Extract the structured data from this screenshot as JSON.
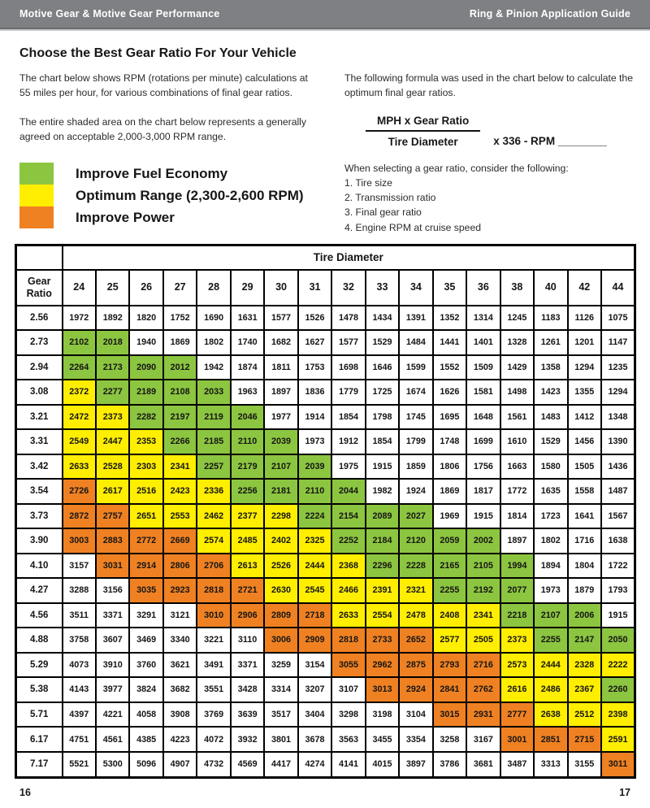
{
  "topbar": {
    "left": "Motive Gear & Motive Gear Performance",
    "right": "Ring & Pinion Application Guide"
  },
  "heading": "Choose the Best Gear Ratio For Your Vehicle",
  "intro": {
    "para1": "The chart below shows RPM (rotations per minute) calculations at 55 miles per hour, for various combinations of final gear ratios.",
    "para2": "The entire shaded area on the chart below represents a generally agreed on acceptable 2,000-3,000 RPM range."
  },
  "legend": {
    "items": [
      {
        "label": "Improve Fuel Economy",
        "color": "#8cc540"
      },
      {
        "label": "Optimum Range (2,300-2,600 RPM)",
        "color": "#ffee00"
      },
      {
        "label": "Improve Power",
        "color": "#ef8122"
      }
    ]
  },
  "formula": {
    "intro": "The following formula was used in the chart below to calculate the optimum final gear ratios.",
    "numerator": "MPH x Gear Ratio",
    "denominator": "Tire Diameter",
    "suffix": "x 336 - RPM ________",
    "considerations_title": "When selecting a gear ratio, consider the following:",
    "considerations": [
      "1. Tire size",
      "2. Transmission ratio",
      "3. Final gear ratio",
      "4. Engine RPM at cruise speed"
    ]
  },
  "palette": {
    "white": "#ffffff",
    "green": "#8cc540",
    "yellow": "#ffee00",
    "orange": "#ef8122"
  },
  "table": {
    "title": "Tire Diameter",
    "corner_label": "Gear Ratio",
    "columns": [
      "24",
      "25",
      "26",
      "27",
      "28",
      "29",
      "30",
      "31",
      "32",
      "33",
      "34",
      "35",
      "36",
      "38",
      "40",
      "42",
      "44"
    ],
    "rows": [
      {
        "ratio": "2.56",
        "values": [
          1972,
          1892,
          1820,
          1752,
          1690,
          1631,
          1577,
          1526,
          1478,
          1434,
          1391,
          1352,
          1314,
          1245,
          1183,
          1126,
          1075
        ],
        "colors": "wwwwwwwwwwwwwwwww"
      },
      {
        "ratio": "2.73",
        "values": [
          2102,
          2018,
          1940,
          1869,
          1802,
          1740,
          1682,
          1627,
          1577,
          1529,
          1484,
          1441,
          1401,
          1328,
          1261,
          1201,
          1147
        ],
        "colors": "ggwwwwwwwwwwwwwww"
      },
      {
        "ratio": "2.94",
        "values": [
          2264,
          2173,
          2090,
          2012,
          1942,
          1874,
          1811,
          1753,
          1698,
          1646,
          1599,
          1552,
          1509,
          1429,
          1358,
          1294,
          1235
        ],
        "colors": "ggggwwwwwwwwwwwww"
      },
      {
        "ratio": "3.08",
        "values": [
          2372,
          2277,
          2189,
          2108,
          2033,
          1963,
          1897,
          1836,
          1779,
          1725,
          1674,
          1626,
          1581,
          1498,
          1423,
          1355,
          1294
        ],
        "colors": "yggggwwwwwwwwwwww"
      },
      {
        "ratio": "3.21",
        "values": [
          2472,
          2373,
          2282,
          2197,
          2119,
          2046,
          1977,
          1914,
          1854,
          1798,
          1745,
          1695,
          1648,
          1561,
          1483,
          1412,
          1348
        ],
        "colors": "yyggggwwwwwwwwwww"
      },
      {
        "ratio": "3.31",
        "values": [
          2549,
          2447,
          2353,
          2266,
          2185,
          2110,
          2039,
          1973,
          1912,
          1854,
          1799,
          1748,
          1699,
          1610,
          1529,
          1456,
          1390
        ],
        "colors": "yyyggggwwwwwwwwww"
      },
      {
        "ratio": "3.42",
        "values": [
          2633,
          2528,
          2303,
          2341,
          2257,
          2179,
          2107,
          2039,
          1975,
          1915,
          1859,
          1806,
          1756,
          1663,
          1580,
          1505,
          1436
        ],
        "colors": "yyyyggggwwwwwwwww"
      },
      {
        "ratio": "3.54",
        "values": [
          2726,
          2617,
          2516,
          2423,
          2336,
          2256,
          2181,
          2110,
          2044,
          1982,
          1924,
          1869,
          1817,
          1772,
          1635,
          1558,
          1487
        ],
        "colors": "oyyyyggggwwwwwwww"
      },
      {
        "ratio": "3.73",
        "values": [
          2872,
          2757,
          2651,
          2553,
          2462,
          2377,
          2298,
          2224,
          2154,
          2089,
          2027,
          1969,
          1915,
          1814,
          1723,
          1641,
          1567
        ],
        "colors": "ooyyyyyggggwwwwww"
      },
      {
        "ratio": "3.90",
        "values": [
          3003,
          2883,
          2772,
          2669,
          2574,
          2485,
          2402,
          2325,
          2252,
          2184,
          2120,
          2059,
          2002,
          1897,
          1802,
          1716,
          1638
        ],
        "colors": "ooooyyyygggggwwww"
      },
      {
        "ratio": "4.10",
        "values": [
          3157,
          3031,
          2914,
          2806,
          2706,
          2613,
          2526,
          2444,
          2368,
          2296,
          2228,
          2165,
          2105,
          1994,
          1894,
          1804,
          1722
        ],
        "colors": "wooooyyyygggggwww"
      },
      {
        "ratio": "4.27",
        "values": [
          3288,
          3156,
          3035,
          2923,
          2818,
          2721,
          2630,
          2545,
          2466,
          2391,
          2321,
          2255,
          2192,
          2077,
          1973,
          1879,
          1793
        ],
        "colors": "wwooooyyyyygggwww"
      },
      {
        "ratio": "4.56",
        "values": [
          3511,
          3371,
          3291,
          3121,
          3010,
          2906,
          2809,
          2718,
          2633,
          2554,
          2478,
          2408,
          2341,
          2218,
          2107,
          2006,
          1915
        ],
        "colors": "wwwwooooyyyyygggw"
      },
      {
        "ratio": "4.88",
        "values": [
          3758,
          3607,
          3469,
          3340,
          3221,
          3110,
          3006,
          2909,
          2818,
          2733,
          2652,
          2577,
          2505,
          2373,
          2255,
          2147,
          2050
        ],
        "colors": "wwwwwwoooooyyyggg"
      },
      {
        "ratio": "5.29",
        "values": [
          4073,
          3910,
          3760,
          3621,
          3491,
          3371,
          3259,
          3154,
          3055,
          2962,
          2875,
          2793,
          2716,
          2573,
          2444,
          2328,
          2222
        ],
        "colors": "wwwwwwwwoooooyyyy"
      },
      {
        "ratio": "5.38",
        "values": [
          4143,
          3977,
          3824,
          3682,
          3551,
          3428,
          3314,
          3207,
          3107,
          3013,
          2924,
          2841,
          2762,
          2616,
          2486,
          2367,
          2260
        ],
        "colors": "wwwwwwwwwooooyyyg"
      },
      {
        "ratio": "5.71",
        "values": [
          4397,
          4221,
          4058,
          3908,
          3769,
          3639,
          3517,
          3404,
          3298,
          3198,
          3104,
          3015,
          2931,
          2777,
          2638,
          2512,
          2398
        ],
        "colors": "wwwwwwwwwwwoooyyy"
      },
      {
        "ratio": "6.17",
        "values": [
          4751,
          4561,
          4385,
          4223,
          4072,
          3932,
          3801,
          3678,
          3563,
          3455,
          3354,
          3258,
          3167,
          3001,
          2851,
          2715,
          2591
        ],
        "colors": "wwwwwwwwwwwwwoooy"
      },
      {
        "ratio": "7.17",
        "values": [
          5521,
          5300,
          5096,
          4907,
          4732,
          4569,
          4417,
          4274,
          4141,
          4015,
          3897,
          3786,
          3681,
          3487,
          3313,
          3155,
          3011
        ],
        "colors": "wwwwwwwwwwwwwwwwo"
      }
    ]
  },
  "footer": {
    "left_page": "16",
    "right_page": "17"
  }
}
